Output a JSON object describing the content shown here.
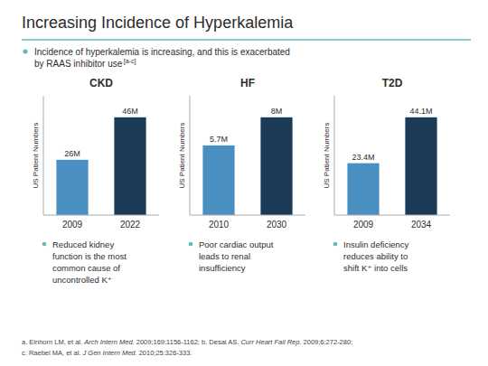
{
  "title": "Increasing Incidence of Hyperkalemia",
  "annotations": [
    "Incidence of hyperkalemia is increasing, and this is exacerbated",
    "by RAAS inhibitor use",
    "[a-c]"
  ],
  "footnotes": [
    [
      "a. Einhorn LM, et al. ",
      "Arch Intern Med.",
      " 2009;169:1156-1162; b. Desai AS. ",
      "Curr Heart Fail Rep.",
      " 2009;6:272-280;"
    ],
    [
      "c. Raebel MA, et al. ",
      "J Gen Intern Med.",
      " 2010;25:326-333."
    ]
  ],
  "chart_data": [
    {
      "type": "bar",
      "title": "CKD",
      "categories": [
        "2009",
        "2022"
      ],
      "values": [
        26,
        46
      ],
      "value_labels": [
        "26M",
        "46M"
      ],
      "data_labels": true,
      "colors": [
        "#4a8fc2",
        "#1b3a58"
      ],
      "ylabel": "US Patient Numbers",
      "ylim": [
        0,
        56.12
      ],
      "tick_labels": "x",
      "annotations": [
        "Reduced kidney\nfunction is the most\ncommon cause of\nuncontrolled K⁺"
      ]
    },
    {
      "type": "bar",
      "title": "HF",
      "categories": [
        "2010",
        "2030"
      ],
      "values": [
        5.7,
        8
      ],
      "value_labels": [
        "5.7M",
        "8M"
      ],
      "data_labels": true,
      "colors": [
        "#4a8fc2",
        "#1b3a58"
      ],
      "ylabel": "US Patient Numbers",
      "ylim": [
        0,
        9.76
      ],
      "tick_labels": "x",
      "annotations": [
        "Poor cardiac output\nleads to renal\ninsufficiency"
      ]
    },
    {
      "type": "bar",
      "title": "T2D",
      "categories": [
        "2009",
        "2034"
      ],
      "values": [
        23.4,
        44.1
      ],
      "value_labels": [
        "23.4M",
        "44.1M"
      ],
      "data_labels": true,
      "colors": [
        "#4a8fc2",
        "#1b3a58"
      ],
      "ylabel": "US Patient Numbers",
      "ylim": [
        0,
        53.802
      ],
      "tick_labels": "x",
      "annotations": [
        "Insulin deficiency\nreduces ability to\nshift K⁺ into cells"
      ]
    }
  ]
}
